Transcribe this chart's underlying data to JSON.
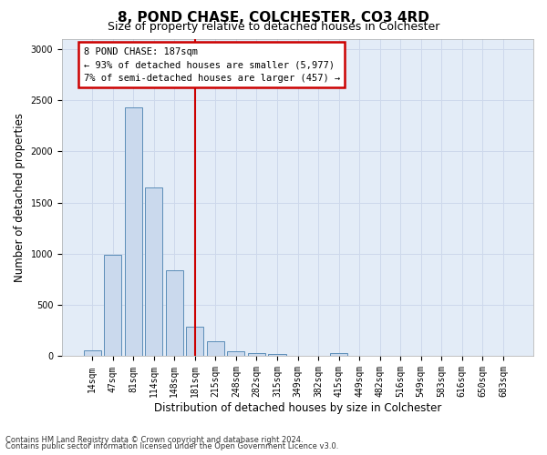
{
  "title": "8, POND CHASE, COLCHESTER, CO3 4RD",
  "subtitle": "Size of property relative to detached houses in Colchester",
  "xlabel": "Distribution of detached houses by size in Colchester",
  "ylabel": "Number of detached properties",
  "bar_labels": [
    "14sqm",
    "47sqm",
    "81sqm",
    "114sqm",
    "148sqm",
    "181sqm",
    "215sqm",
    "248sqm",
    "282sqm",
    "315sqm",
    "349sqm",
    "382sqm",
    "415sqm",
    "449sqm",
    "482sqm",
    "516sqm",
    "549sqm",
    "583sqm",
    "616sqm",
    "650sqm",
    "683sqm"
  ],
  "bar_values": [
    55,
    990,
    2430,
    1650,
    840,
    290,
    150,
    50,
    35,
    20,
    0,
    0,
    30,
    0,
    0,
    0,
    0,
    0,
    0,
    0,
    0
  ],
  "bar_color": "#cad9ed",
  "bar_edge_color": "#5b8db8",
  "vline_x": 5.0,
  "vline_color": "#cc0000",
  "annotation_title": "8 POND CHASE: 187sqm",
  "annotation_line1": "← 93% of detached houses are smaller (5,977)",
  "annotation_line2": "7% of semi-detached houses are larger (457) →",
  "annotation_box_edge_color": "#cc0000",
  "ylim": [
    0,
    3100
  ],
  "yticks": [
    0,
    500,
    1000,
    1500,
    2000,
    2500,
    3000
  ],
  "footer_line1": "Contains HM Land Registry data © Crown copyright and database right 2024.",
  "footer_line2": "Contains public sector information licensed under the Open Government Licence v3.0.",
  "grid_color": "#cdd8eb",
  "background_color": "#e3ecf7",
  "title_fontsize": 11,
  "subtitle_fontsize": 9,
  "axis_label_fontsize": 8.5,
  "tick_fontsize": 7,
  "annotation_fontsize": 7.5,
  "footer_fontsize": 6
}
